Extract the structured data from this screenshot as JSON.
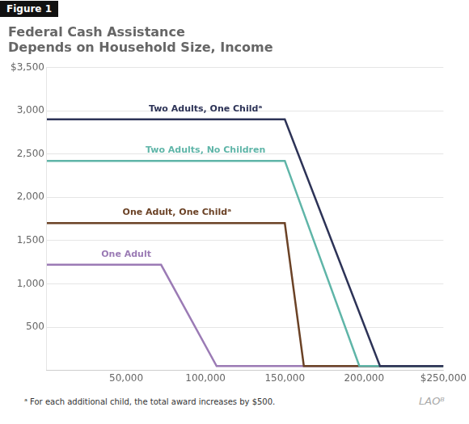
{
  "chart_data": {
    "type": "line",
    "title": "Federal Cash Assistance",
    "subtitle": "Depends on Household Size, Income",
    "figure_label": "Figure 1",
    "footnote": "ᵃ For each additional child, the total award increases by $500.",
    "watermark": "LAOᴮ",
    "series": [
      {
        "name": "Two Adults, One Childᵃ",
        "color": "#2d3357",
        "x": [
          0,
          150000,
          210000,
          250000
        ],
        "values": [
          2900,
          2900,
          50,
          50
        ]
      },
      {
        "name": "Two Adults, No Children",
        "color": "#5fb5a8",
        "x": [
          0,
          150000,
          197000,
          250000
        ],
        "values": [
          2420,
          2420,
          50,
          50
        ]
      },
      {
        "name": "One Adult, One Childᵃ",
        "color": "#6b4226",
        "x": [
          0,
          150000,
          162000,
          250000
        ],
        "values": [
          1700,
          1700,
          50,
          50
        ]
      },
      {
        "name": "One Adult",
        "color": "#9b7bb5",
        "x": [
          0,
          72000,
          107000,
          250000
        ],
        "values": [
          1220,
          1220,
          50,
          50
        ]
      }
    ],
    "annotations": [
      {
        "text": "Two Adults, One Childᵃ",
        "x": 100000,
        "y": 2970,
        "color": "#2d3357"
      },
      {
        "text": "Two Adults, No Children",
        "x": 100000,
        "y": 2490,
        "color": "#5fb5a8"
      },
      {
        "text": "One Adult, One Childᵃ",
        "x": 82000,
        "y": 1770,
        "color": "#6b4226"
      },
      {
        "text": "One Adult",
        "x": 50000,
        "y": 1290,
        "color": "#9b7bb5"
      }
    ],
    "xlim": [
      0,
      250000
    ],
    "ylim": [
      0,
      3500
    ],
    "xticks": [
      {
        "value": 50000,
        "label": "50,000"
      },
      {
        "value": 100000,
        "label": "100,000"
      },
      {
        "value": 150000,
        "label": "150,000"
      },
      {
        "value": 200000,
        "label": "200,000"
      },
      {
        "value": 250000,
        "label": "$250,000"
      }
    ],
    "yticks": [
      {
        "value": 0,
        "label": null
      },
      500,
      {
        "value": 1000,
        "label": "1,000"
      },
      {
        "value": 1500,
        "label": "1,500"
      },
      {
        "value": 2000,
        "label": "2,000"
      },
      {
        "value": 2500,
        "label": "2,500"
      },
      {
        "value": 3000,
        "label": "3,000"
      },
      {
        "value": 3500,
        "label": "$3,500"
      }
    ],
    "grid": "y"
  }
}
